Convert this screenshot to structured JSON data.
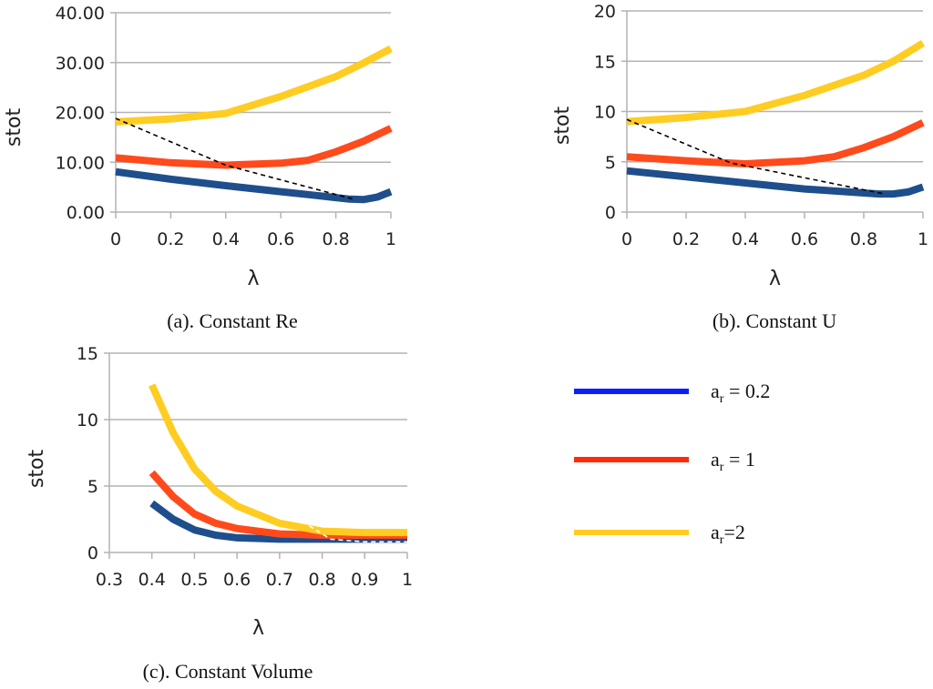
{
  "colors": {
    "blue": "#1f4e8c",
    "red": "#ff4a1c",
    "yellow": "#ffcc22",
    "legend_blue": "#0a1eff",
    "legend_red": "#ff2a0a"
  },
  "legend": {
    "items": [
      {
        "label_main": "a",
        "label_sub": "r",
        "label_rest": " = 0.2",
        "color": "#0a1eff"
      },
      {
        "label_main": "a",
        "label_sub": "r",
        "label_rest": " = 1",
        "color": "#ff2a0a"
      },
      {
        "label_main": "a",
        "label_sub": "r",
        "label_rest": "=2",
        "color": "#ffcc22"
      }
    ]
  },
  "chart_data": [
    {
      "type": "line",
      "caption": "(a). Constant Re",
      "xlabel": "λ",
      "ylabel": "stot",
      "xlim": [
        0,
        1
      ],
      "ylim": [
        0,
        40
      ],
      "xticks": [
        "0",
        "0.2",
        "0.4",
        "0.6",
        "0.8",
        "1"
      ],
      "yticks": [
        "0.00",
        "10.00",
        "20.00",
        "30.00",
        "40.00"
      ],
      "series": [
        {
          "name": "ar = 0.2",
          "color": "#1f4e8c",
          "x": [
            0,
            0.2,
            0.4,
            0.6,
            0.7,
            0.8,
            0.85,
            0.9,
            0.95,
            1.0
          ],
          "values": [
            8.1,
            6.6,
            5.3,
            4.1,
            3.5,
            2.9,
            2.6,
            2.5,
            3.0,
            4.1
          ]
        },
        {
          "name": "ar = 1",
          "color": "#ff4a1c",
          "x": [
            0,
            0.2,
            0.4,
            0.6,
            0.7,
            0.8,
            0.9,
            1.0
          ],
          "values": [
            10.9,
            9.9,
            9.4,
            9.8,
            10.4,
            12.1,
            14.2,
            16.8
          ]
        },
        {
          "name": "ar=2",
          "color": "#ffcc22",
          "x": [
            0,
            0.2,
            0.4,
            0.6,
            0.8,
            0.9,
            1.0
          ],
          "values": [
            18.1,
            18.7,
            19.8,
            23.2,
            27.2,
            29.9,
            32.8
          ]
        },
        {
          "name": "minimum trend",
          "color": "#000000",
          "dashed": true,
          "x": [
            0,
            0.4,
            0.87
          ],
          "values": [
            18.8,
            9.4,
            2.5
          ]
        }
      ]
    },
    {
      "type": "line",
      "caption": "(b). Constant U",
      "xlabel": "λ",
      "ylabel": "stot",
      "xlim": [
        0,
        1
      ],
      "ylim": [
        0,
        20
      ],
      "xticks": [
        "0",
        "0.2",
        "0.4",
        "0.6",
        "0.8",
        "1"
      ],
      "yticks": [
        "0",
        "5",
        "10",
        "15",
        "20"
      ],
      "series": [
        {
          "name": "ar = 0.2",
          "color": "#1f4e8c",
          "x": [
            0,
            0.2,
            0.4,
            0.6,
            0.8,
            0.85,
            0.9,
            0.95,
            1.0
          ],
          "values": [
            4.1,
            3.5,
            2.9,
            2.3,
            1.9,
            1.8,
            1.8,
            2.0,
            2.5
          ]
        },
        {
          "name": "ar = 1",
          "color": "#ff4a1c",
          "x": [
            0,
            0.2,
            0.4,
            0.6,
            0.7,
            0.8,
            0.9,
            1.0
          ],
          "values": [
            5.5,
            5.1,
            4.8,
            5.1,
            5.5,
            6.4,
            7.5,
            8.9
          ]
        },
        {
          "name": "ar=2",
          "color": "#ffcc22",
          "x": [
            0,
            0.2,
            0.4,
            0.6,
            0.8,
            0.9,
            1.0
          ],
          "values": [
            9.0,
            9.4,
            10.0,
            11.6,
            13.6,
            15.0,
            16.8
          ]
        },
        {
          "name": "minimum trend",
          "color": "#000000",
          "dashed": true,
          "x": [
            0,
            0.35,
            0.87
          ],
          "values": [
            9.2,
            4.9,
            1.8
          ]
        }
      ]
    },
    {
      "type": "line",
      "caption": "(c). Constant Volume",
      "xlabel": "λ",
      "ylabel": "stot",
      "xlim": [
        0.3,
        1
      ],
      "ylim": [
        0,
        15
      ],
      "xticks": [
        "0.3",
        "0.4",
        "0.5",
        "0.6",
        "0.7",
        "0.8",
        "0.9",
        "1"
      ],
      "yticks": [
        "0",
        "5",
        "10",
        "15"
      ],
      "series": [
        {
          "name": "ar = 0.2",
          "color": "#1f4e8c",
          "x": [
            0.4,
            0.45,
            0.5,
            0.55,
            0.6,
            0.7,
            0.8,
            0.9,
            1.0
          ],
          "values": [
            3.7,
            2.5,
            1.7,
            1.3,
            1.1,
            1.0,
            1.0,
            1.0,
            1.0
          ]
        },
        {
          "name": "ar = 1",
          "color": "#ff4a1c",
          "x": [
            0.4,
            0.45,
            0.5,
            0.55,
            0.6,
            0.7,
            0.8,
            0.9,
            1.0
          ],
          "values": [
            6.0,
            4.2,
            2.9,
            2.2,
            1.8,
            1.4,
            1.3,
            1.3,
            1.3
          ]
        },
        {
          "name": "ar=2",
          "color": "#ffcc22",
          "x": [
            0.4,
            0.45,
            0.5,
            0.55,
            0.6,
            0.7,
            0.8,
            0.9,
            1.0
          ],
          "values": [
            12.6,
            9.0,
            6.3,
            4.6,
            3.5,
            2.2,
            1.6,
            1.5,
            1.5
          ]
        },
        {
          "name": "minimum trend",
          "color": "#ffffff",
          "dashed": true,
          "x": [
            0.77,
            0.82,
            0.9,
            1.0
          ],
          "values": [
            2.0,
            1.0,
            0.8,
            0.8
          ]
        }
      ]
    }
  ]
}
